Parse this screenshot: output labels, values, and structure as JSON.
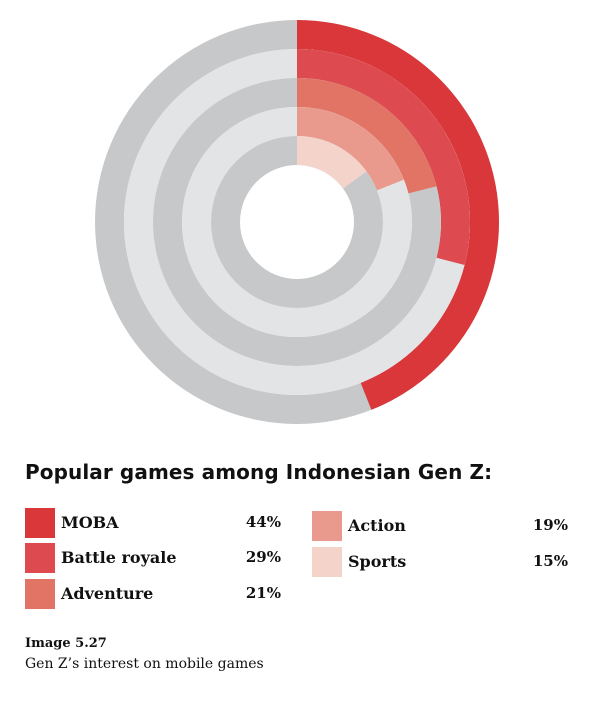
{
  "chart_data": {
    "type": "radial-bar",
    "title": "Popular games among Indonesian Gen Z:",
    "categories": [
      "MOBA",
      "Battle royale",
      "Adventure",
      "Action",
      "Sports"
    ],
    "values": [
      44,
      29,
      21,
      19,
      15
    ],
    "value_labels": [
      "44%",
      "29%",
      "21%",
      "19%",
      "15%"
    ],
    "max": 100,
    "colors": [
      "#d9373a",
      "#dd4b50",
      "#e27466",
      "#ea9a8c",
      "#f4d3ca"
    ],
    "track_colors": [
      "#c7c8ca",
      "#e3e4e6"
    ]
  },
  "caption": {
    "number": "Image 5.27",
    "text": "Gen Z’s interest on mobile games"
  }
}
